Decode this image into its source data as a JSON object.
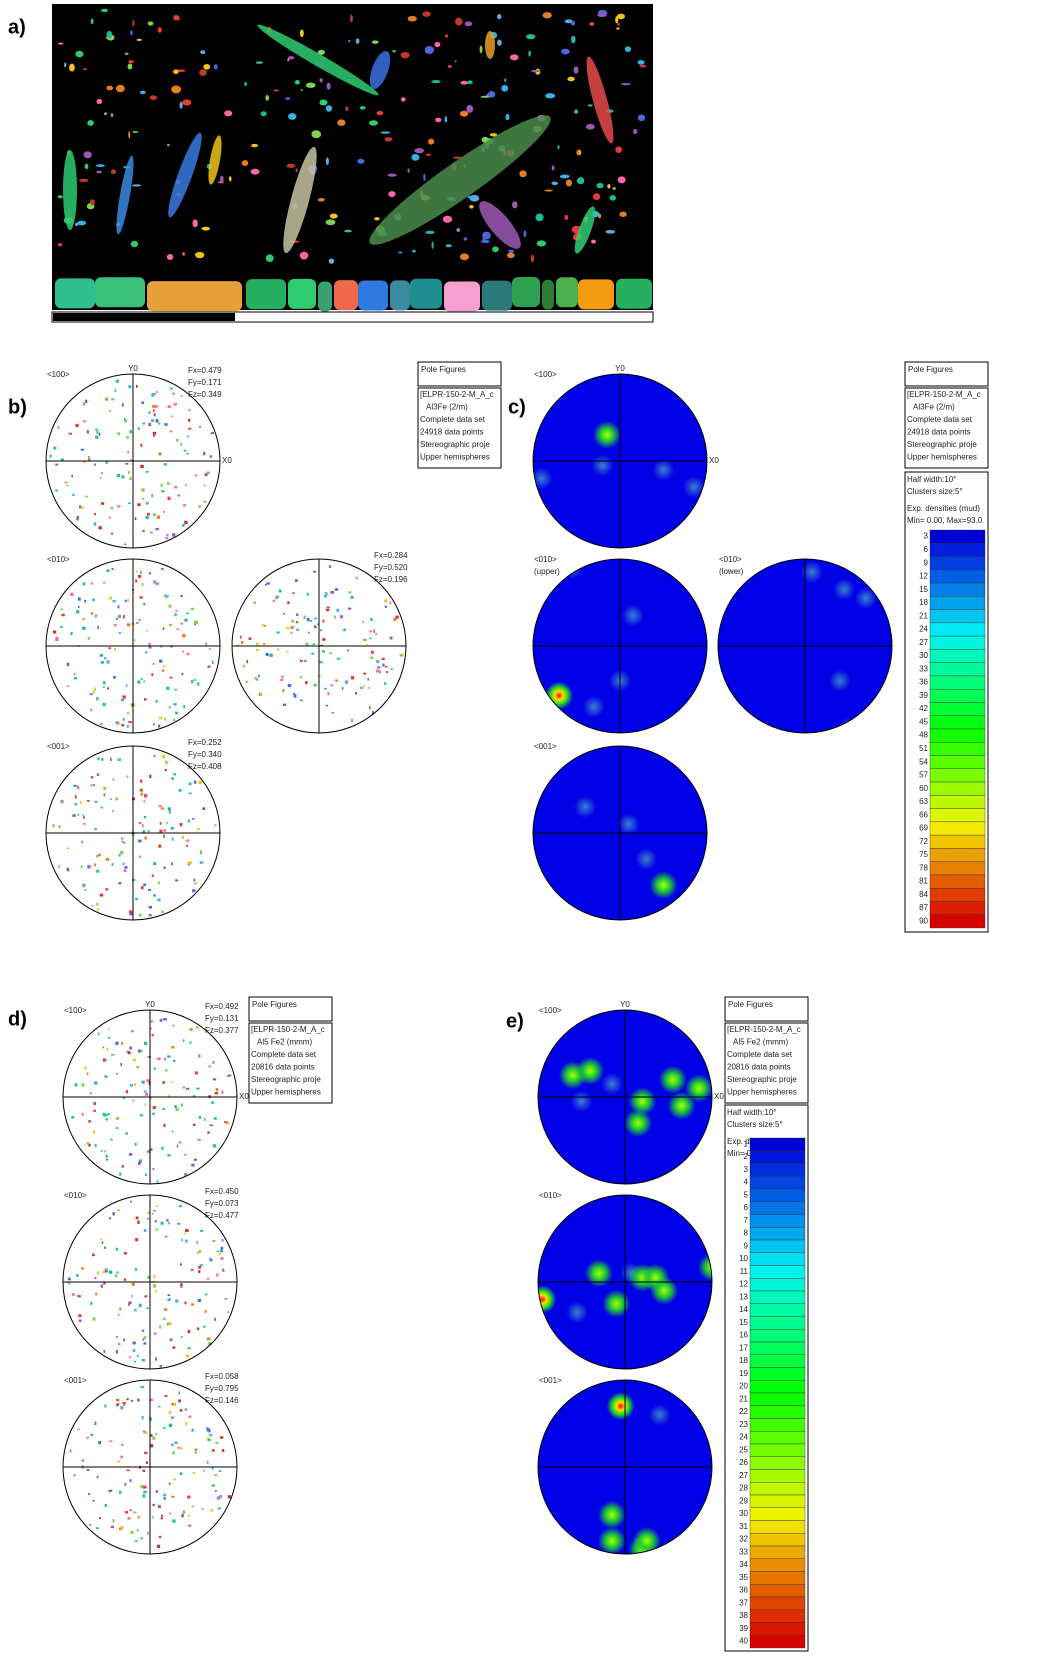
{
  "panel_labels": {
    "a": "a)",
    "b": "b)",
    "c": "c)",
    "d": "d)",
    "e": "e)"
  },
  "b": {
    "pole_figures": [
      {
        "label": "<100>",
        "y_axis": "Y0",
        "x_axis": "X0",
        "factors": [
          "Fx=0.479",
          "Fy=0.171",
          "Fz=0.349"
        ]
      },
      {
        "label": "<010>"
      },
      {
        "factors": [
          "Fx=0.284",
          "Fy=0.520",
          "Fz=0.196"
        ]
      },
      {
        "label": "<001>",
        "factors": [
          "Fx=0.252",
          "Fy=0.340",
          "Fz=0.408"
        ]
      }
    ],
    "info": [
      "Pole Figures",
      "[ELPR-150-2-M_A_c",
      "Al3Fe  (2/m)",
      "Complete data set",
      "24918 data points",
      "Stereographic proje",
      "Upper hemispheres"
    ]
  },
  "c": {
    "pole_figures": [
      {
        "label": "<100>",
        "y_axis": "Y0",
        "x_axis": "X0"
      },
      {
        "label": "<010>",
        "sublabel": "(upper)"
      },
      {
        "label": "<010>",
        "sublabel": "(lower)"
      },
      {
        "label": "<001>"
      }
    ],
    "info": [
      "Pole Figures",
      "[ELPR-150-2-M_A_c",
      "Al3Fe  (2/m)",
      "Complete data set",
      "24918 data points",
      "Stereographic proje",
      "Upper hemispheres"
    ],
    "legend": {
      "lines": [
        "Half width:10°",
        "Clusters size:5°",
        "Exp. densities (mud)",
        "Min= 0.00, Max=93.0"
      ],
      "scale": [
        3,
        6,
        9,
        12,
        15,
        18,
        21,
        24,
        27,
        30,
        33,
        36,
        39,
        42,
        45,
        48,
        51,
        54,
        57,
        60,
        63,
        66,
        69,
        72,
        75,
        78,
        81,
        84,
        87,
        90
      ]
    }
  },
  "d": {
    "pole_figures": [
      {
        "label": "<100>",
        "y_axis": "Y0",
        "x_axis": "X0",
        "factors": [
          "Fx=0.492",
          "Fy=0.131",
          "Fz=0.377"
        ]
      },
      {
        "label": "<010>",
        "factors": [
          "Fx=0.450",
          "Fy=0.073",
          "Fz=0.477"
        ]
      },
      {
        "label": "<001>",
        "factors": [
          "Fx=0.058",
          "Fy=0.795",
          "Fz=0.146"
        ]
      }
    ],
    "info": [
      "Pole Figures",
      "[ELPR-150-2-M_A_c",
      "Al5 Fe2 (mmm)",
      "Complete data set",
      "20816 data points",
      "Stereographic proje",
      "Upper hemispheres"
    ]
  },
  "e": {
    "pole_figures": [
      {
        "label": "<100>",
        "y_axis": "Y0",
        "x_axis": "X0"
      },
      {
        "label": "<010>"
      },
      {
        "label": "<001>"
      }
    ],
    "info": [
      "Pole Figures",
      "[ELPR-150-2-M_A_c",
      "Al5 Fe2 (mmm)",
      "Complete data set",
      "20816 data points",
      "Stereographic proje",
      "Upper hemispheres"
    ],
    "legend": {
      "lines": [
        "Half width:10°",
        "Clusters size:5°",
        "Exp. densities (mud)",
        "Min= 0.00, Max=40.5"
      ],
      "scale": [
        1,
        2,
        3,
        4,
        5,
        6,
        7,
        8,
        9,
        10,
        11,
        12,
        13,
        14,
        15,
        16,
        17,
        18,
        19,
        20,
        21,
        22,
        23,
        24,
        25,
        26,
        27,
        28,
        29,
        30,
        31,
        32,
        33,
        34,
        35,
        36,
        37,
        38,
        39,
        40
      ]
    }
  }
}
